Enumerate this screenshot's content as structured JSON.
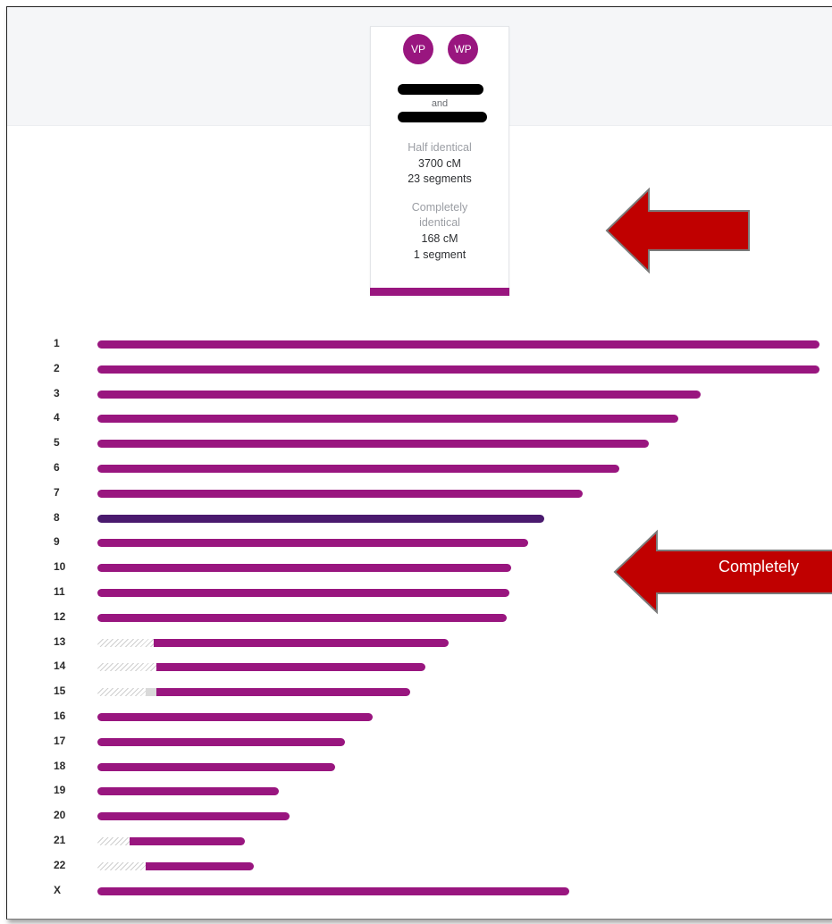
{
  "card": {
    "avatar_left": "VP",
    "avatar_right": "WP",
    "and_text": "and",
    "half_label": "Half identical",
    "half_cm": "3700 cM",
    "half_segments": "23 segments",
    "full_label_line1": "Completely",
    "full_label_line2": "identical",
    "full_cm": "168 cM",
    "full_segments": "1 segment"
  },
  "callout": {
    "completely_text": "Completely"
  },
  "colors": {
    "half_identical": "#99167f",
    "completely_identical": "#4a1a6e",
    "arrow": "#c00000"
  },
  "chromosomes": [
    {
      "label": "1",
      "fill_fraction": 1.0,
      "type": "half"
    },
    {
      "label": "2",
      "fill_fraction": 1.0,
      "type": "half"
    },
    {
      "label": "3",
      "fill_fraction": 1.0,
      "type": "half"
    },
    {
      "label": "4",
      "fill_fraction": 1.0,
      "type": "half"
    },
    {
      "label": "5",
      "fill_fraction": 1.0,
      "type": "half"
    },
    {
      "label": "6",
      "fill_fraction": 1.0,
      "type": "half"
    },
    {
      "label": "7",
      "fill_fraction": 1.0,
      "type": "half"
    },
    {
      "label": "8",
      "fill_fraction": 1.0,
      "type": "full"
    },
    {
      "label": "9",
      "fill_fraction": 1.0,
      "type": "half"
    },
    {
      "label": "10",
      "fill_fraction": 1.0,
      "type": "half"
    },
    {
      "label": "11",
      "fill_fraction": 1.0,
      "type": "half"
    },
    {
      "label": "12",
      "fill_fraction": 1.0,
      "type": "half"
    },
    {
      "label": "13",
      "fill_fraction": 0.84,
      "type": "half"
    },
    {
      "label": "14",
      "fill_fraction": 0.82,
      "type": "half"
    },
    {
      "label": "15",
      "fill_fraction": 0.81,
      "type": "half"
    },
    {
      "label": "16",
      "fill_fraction": 1.0,
      "type": "half"
    },
    {
      "label": "17",
      "fill_fraction": 1.0,
      "type": "half"
    },
    {
      "label": "18",
      "fill_fraction": 1.0,
      "type": "half"
    },
    {
      "label": "19",
      "fill_fraction": 1.0,
      "type": "half"
    },
    {
      "label": "20",
      "fill_fraction": 1.0,
      "type": "half"
    },
    {
      "label": "21",
      "fill_fraction": 0.78,
      "type": "half"
    },
    {
      "label": "22",
      "fill_fraction": 0.69,
      "type": "half"
    },
    {
      "label": "X",
      "fill_fraction": 1.0,
      "type": "half"
    }
  ]
}
